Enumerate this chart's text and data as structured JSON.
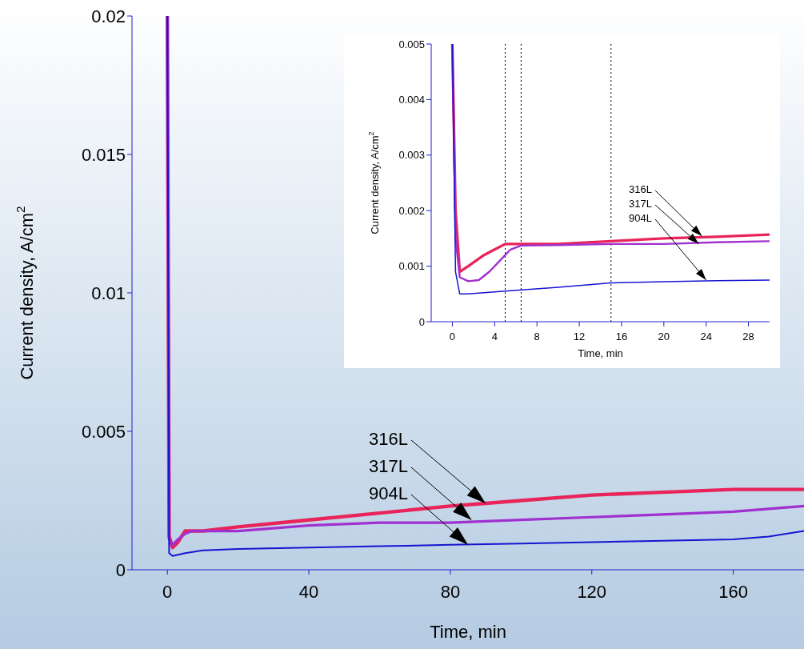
{
  "chart_data": [
    {
      "type": "line",
      "xlabel": "Time, min",
      "ylabel": "Current density, A/cm$^{2}$",
      "xlim": [
        -10,
        180
      ],
      "xticks": [
        0,
        40,
        80,
        120,
        160
      ],
      "ylim": [
        0,
        0.02
      ],
      "yticks": [
        0,
        0.005,
        0.01,
        0.015,
        0.02
      ],
      "grid": false,
      "series": [
        {
          "color": "#e8245a",
          "x": [
            0,
            0.5,
            1.5,
            3,
            5,
            10,
            20,
            40,
            60,
            80,
            90,
            100,
            120,
            140,
            160,
            180
          ],
          "values": [
            0.02,
            0.0012,
            0.0008,
            0.001,
            0.0014,
            0.0014,
            0.00155,
            0.0018,
            0.00205,
            0.0023,
            0.0024,
            0.0025,
            0.0027,
            0.0028,
            0.0029,
            0.0029
          ]
        },
        {
          "color": "#a030d0",
          "x": [
            0,
            0.5,
            1.5,
            3,
            5,
            7,
            10,
            20,
            40,
            60,
            80,
            100,
            120,
            140,
            160,
            180
          ],
          "values": [
            0.02,
            0.0011,
            0.0009,
            0.0011,
            0.0013,
            0.0014,
            0.0014,
            0.0014,
            0.0016,
            0.0017,
            0.0017,
            0.0018,
            0.0019,
            0.002,
            0.0021,
            0.0023
          ]
        },
        {
          "color": "#1515d0",
          "x": [
            0,
            0.5,
            1.5,
            5,
            10,
            20,
            40,
            60,
            80,
            100,
            120,
            140,
            160,
            170,
            180
          ],
          "values": [
            0.02,
            0.0006,
            0.0005,
            0.0006,
            0.0007,
            0.00075,
            0.0008,
            0.00085,
            0.0009,
            0.00095,
            0.001,
            0.00105,
            0.0011,
            0.0012,
            0.0014
          ]
        }
      ],
      "annotations": [
        {
          "text": "316L",
          "x": 90,
          "y": 0.0024
        },
        {
          "text": "317L",
          "x": 86,
          "y": 0.0018
        },
        {
          "text": "904L",
          "x": 85,
          "y": 0.0009
        }
      ]
    },
    {
      "type": "line",
      "xlabel": "Time, min",
      "ylabel": "Current density, A/cm$^{2}$",
      "xlim": [
        -2,
        30
      ],
      "xticks": [
        0,
        4,
        8,
        12,
        16,
        20,
        24,
        28
      ],
      "ylim": [
        0,
        0.005
      ],
      "yticks": [
        0,
        0.001,
        0.002,
        0.003,
        0.004,
        0.005
      ],
      "grid": false,
      "series": [
        {
          "color": "#e8245a",
          "x": [
            0,
            0.3,
            0.7,
            1.5,
            3,
            4,
            5,
            10,
            15,
            20,
            25,
            30
          ],
          "values": [
            0.005,
            0.002,
            0.0009,
            0.001,
            0.0012,
            0.0013,
            0.0014,
            0.0014,
            0.00145,
            0.0015,
            0.00153,
            0.00157
          ]
        },
        {
          "color": "#a030d0",
          "x": [
            0,
            0.3,
            0.7,
            1.5,
            2.5,
            3.5,
            4.5,
            5.5,
            6.5,
            10,
            15,
            20,
            25,
            30
          ],
          "values": [
            0.005,
            0.0015,
            0.0008,
            0.00073,
            0.00075,
            0.0009,
            0.0011,
            0.0013,
            0.00137,
            0.00138,
            0.0014,
            0.0014,
            0.00143,
            0.00145
          ]
        },
        {
          "color": "#1515d0",
          "x": [
            0,
            0.3,
            0.7,
            1.5,
            5,
            10,
            15,
            20,
            25,
            30
          ],
          "values": [
            0.005,
            0.0009,
            0.0005,
            0.0005,
            0.00055,
            0.00062,
            0.0007,
            0.00072,
            0.00074,
            0.00075
          ]
        }
      ],
      "ref_lines": [
        {
          "axis": "x",
          "value": 5,
          "color": "#000000",
          "line_style": "dotted"
        },
        {
          "axis": "x",
          "value": 6.5,
          "color": "#000000",
          "line_style": "dotted"
        },
        {
          "axis": "x",
          "value": 15,
          "color": "#000000",
          "line_style": "dotted"
        }
      ],
      "annotations": [
        {
          "text": "316L",
          "x": 23.6,
          "y": 0.00154
        },
        {
          "text": "317L",
          "x": 23.3,
          "y": 0.0014
        },
        {
          "text": "904L",
          "x": 24,
          "y": 0.00075
        }
      ]
    }
  ]
}
